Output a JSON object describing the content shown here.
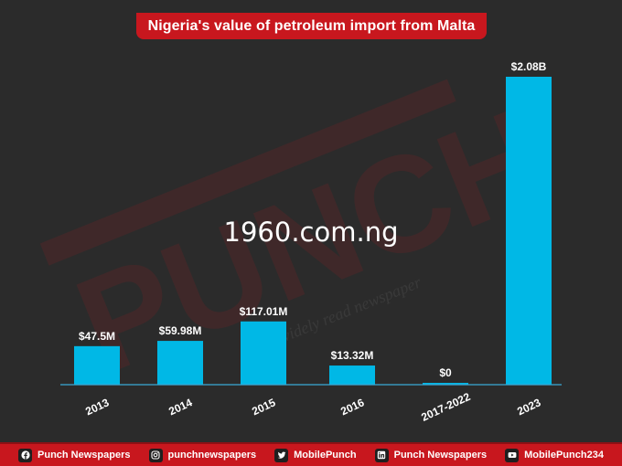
{
  "title": "Nigeria's value of petroleum import from Malta",
  "overlay_text": "1960.com.ng",
  "watermark": {
    "brand": "PUNCH",
    "tagline": "...widely read newspaper"
  },
  "colors": {
    "bar": "#00b8e6",
    "banner": "#c8171e",
    "background": "#2b2b2b",
    "axis": "#3aa9d6"
  },
  "chart_data": {
    "type": "bar",
    "categories": [
      "2013",
      "2014",
      "2015",
      "2016",
      "2017-2022",
      "2023"
    ],
    "values": [
      47500000,
      59980000,
      117010000,
      13320000,
      0,
      2080000000
    ],
    "value_labels": [
      "$47.5M",
      "$59.98M",
      "$117.01M",
      "$13.32M",
      "$0",
      "$2.08B"
    ],
    "scale": "non-linear (display bars not proportional)",
    "xlabel": "",
    "ylabel": "",
    "grid": false,
    "legend": "none"
  },
  "footer": [
    {
      "icon": "facebook-icon",
      "label": "Punch Newspapers"
    },
    {
      "icon": "instagram-icon",
      "label": "punchnewspapers"
    },
    {
      "icon": "twitter-icon",
      "label": "MobilePunch"
    },
    {
      "icon": "linkedin-icon",
      "label": "Punch Newspapers"
    },
    {
      "icon": "youtube-icon",
      "label": "MobilePunch234"
    }
  ]
}
